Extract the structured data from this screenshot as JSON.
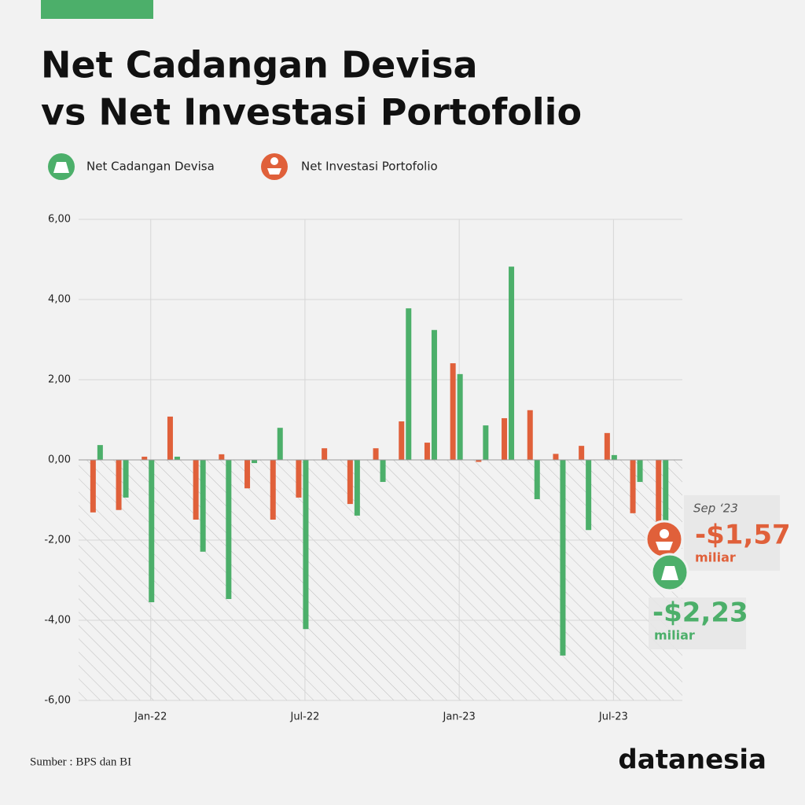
{
  "chart_data": {
    "type": "bar",
    "title": [
      "Net Cadangan Devisa",
      "vs Net Investasi Portofolio"
    ],
    "categories": [
      null,
      null,
      "Jan-22",
      null,
      null,
      null,
      null,
      null,
      "Jul-22",
      null,
      null,
      null,
      null,
      null,
      "Jan-23",
      null,
      null,
      null,
      null,
      null,
      "Jul-23",
      null,
      null
    ],
    "series": [
      {
        "name": "Net Cadangan Devisa",
        "color": "#4caf6a",
        "values": [
          0.37,
          -0.94,
          -3.55,
          0.08,
          -2.29,
          -3.47,
          -0.08,
          0.8,
          -4.22,
          0,
          -1.39,
          -0.55,
          3.78,
          3.24,
          2.14,
          0.86,
          4.82,
          -0.98,
          -4.88,
          -1.75,
          0.12,
          -0.55,
          -2.23
        ],
        "value_labels": [
          null,
          null,
          null,
          null,
          null,
          null,
          null,
          null,
          null,
          null,
          null,
          null,
          null,
          null,
          null,
          null,
          null,
          null,
          null,
          null,
          null,
          null,
          "-$2,23"
        ]
      },
      {
        "name": "Net Investasi Portofolio",
        "color": "#e0603a",
        "values": [
          -1.31,
          -1.25,
          0.08,
          1.08,
          -1.49,
          0.14,
          -0.71,
          -1.49,
          -0.94,
          0.29,
          -1.1,
          0.29,
          0.96,
          0.43,
          2.41,
          -0.05,
          1.04,
          1.24,
          0.15,
          0.35,
          0.67,
          -1.33,
          -1.57
        ],
        "value_labels": [
          null,
          null,
          null,
          null,
          null,
          null,
          null,
          null,
          null,
          null,
          null,
          null,
          null,
          null,
          null,
          null,
          null,
          null,
          null,
          null,
          null,
          null,
          "-$1,57"
        ]
      }
    ],
    "ylim": [
      -6,
      6
    ],
    "yticks": [
      {
        "value": -6,
        "label": "-6,00"
      },
      {
        "value": -4,
        "label": "-4,00"
      },
      {
        "value": -2,
        "label": "-2,00"
      },
      {
        "value": 0,
        "label": "0,00"
      },
      {
        "value": 2,
        "label": "2,00"
      },
      {
        "value": 4,
        "label": "4,00"
      },
      {
        "value": 6,
        "label": "6,00"
      }
    ],
    "grid": true,
    "annotations": {
      "period": "Sep ‘23",
      "unit": "miliar"
    },
    "source": "Sumber : BPS dan BI",
    "brand": "datanesia"
  }
}
